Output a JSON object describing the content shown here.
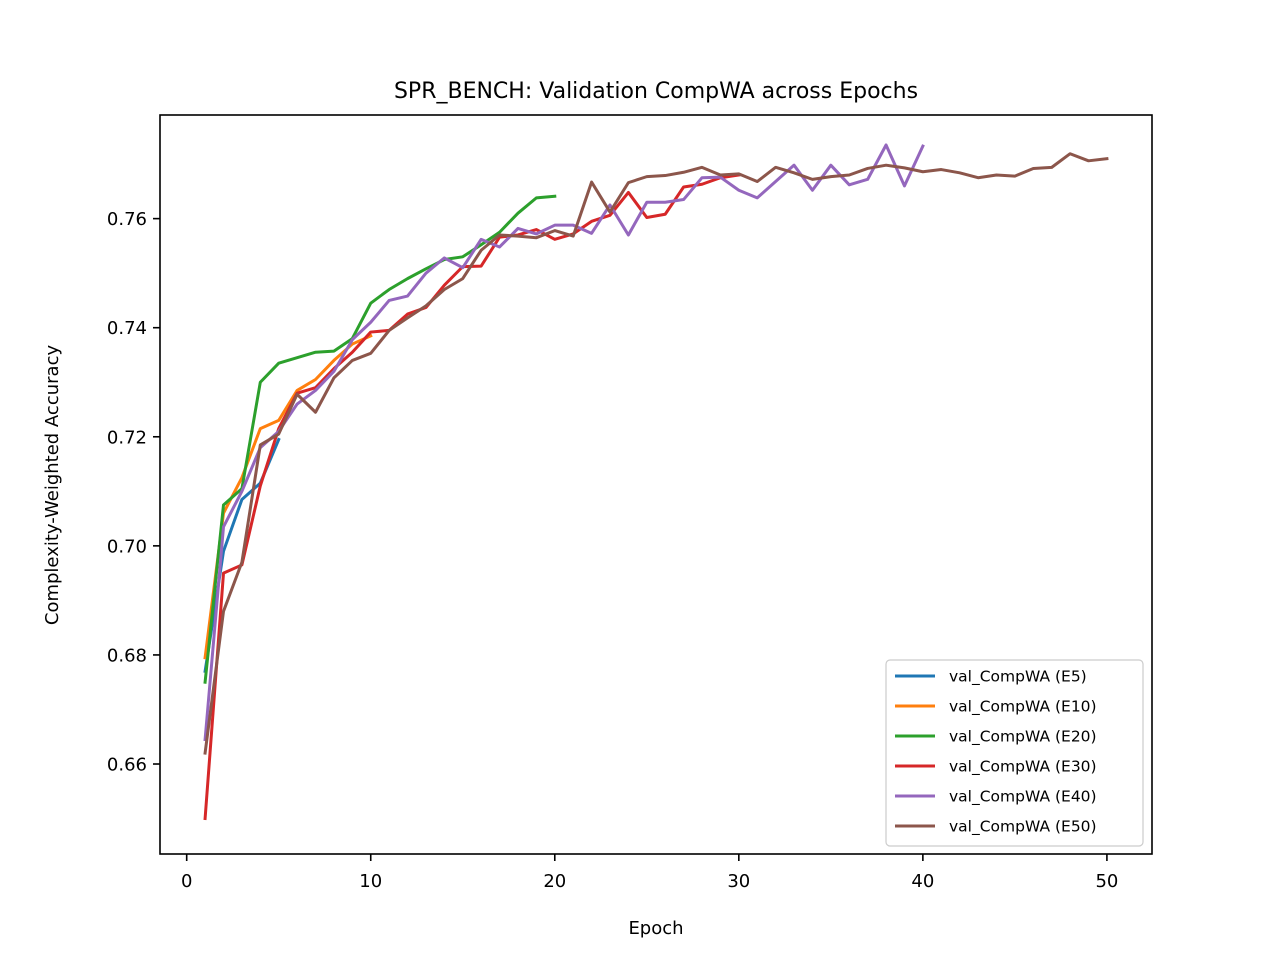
{
  "chart_data": {
    "type": "line",
    "title": "SPR_BENCH: Validation CompWA across Epochs",
    "xlabel": "Epoch",
    "ylabel": "Complexity-Weighted Accuracy",
    "xlim": [
      -1.45,
      52.45
    ],
    "ylim": [
      0.6435,
      0.779
    ],
    "xticks": [
      0,
      10,
      20,
      30,
      40,
      50
    ],
    "yticks": [
      0.66,
      0.68,
      0.7,
      0.72,
      0.74,
      0.76
    ],
    "ytick_labels": [
      "0.66",
      "0.68",
      "0.70",
      "0.72",
      "0.74",
      "0.76"
    ],
    "legend_position": "lower-right",
    "series": [
      {
        "name": "val_CompWA (E5)",
        "color": "#1f77b4",
        "values": [
          0.677,
          0.699,
          0.7085,
          0.7115,
          0.7195
        ]
      },
      {
        "name": "val_CompWA (E10)",
        "color": "#ff7f0e",
        "values": [
          0.6795,
          0.706,
          0.7125,
          0.7215,
          0.723,
          0.7285,
          0.7305,
          0.734,
          0.737,
          0.7385
        ]
      },
      {
        "name": "val_CompWA (E20)",
        "color": "#2ca02c",
        "values": [
          0.675,
          0.7075,
          0.7105,
          0.73,
          0.7335,
          0.7345,
          0.7355,
          0.7357,
          0.738,
          0.7445,
          0.747,
          0.749,
          0.7508,
          0.7525,
          0.753,
          0.7552,
          0.7575,
          0.761,
          0.7638,
          0.7641
        ]
      },
      {
        "name": "val_CompWA (E30)",
        "color": "#d62728",
        "values": [
          0.65,
          0.695,
          0.6965,
          0.711,
          0.7215,
          0.728,
          0.729,
          0.7325,
          0.7355,
          0.7392,
          0.7395,
          0.7425,
          0.7437,
          0.7478,
          0.7512,
          0.7513,
          0.7566,
          0.757,
          0.758,
          0.7562,
          0.7572,
          0.7595,
          0.7606,
          0.7648,
          0.7602,
          0.7608,
          0.7658,
          0.7663,
          0.7675,
          0.768
        ]
      },
      {
        "name": "val_CompWA (E40)",
        "color": "#9467bd",
        "values": [
          0.6645,
          0.7035,
          0.71,
          0.718,
          0.721,
          0.726,
          0.7285,
          0.732,
          0.7378,
          0.741,
          0.745,
          0.7458,
          0.75,
          0.7528,
          0.751,
          0.7562,
          0.7548,
          0.7582,
          0.7572,
          0.7588,
          0.7588,
          0.7573,
          0.7625,
          0.757,
          0.763,
          0.763,
          0.7635,
          0.7675,
          0.7676,
          0.7652,
          0.7638,
          0.7668,
          0.7698,
          0.7652,
          0.7698,
          0.7662,
          0.7672,
          0.7735,
          0.766,
          0.7733
        ]
      },
      {
        "name": "val_CompWA (E50)",
        "color": "#8c564b",
        "values": [
          0.662,
          0.688,
          0.697,
          0.7185,
          0.7205,
          0.7278,
          0.7245,
          0.7308,
          0.734,
          0.7353,
          0.7395,
          0.7418,
          0.744,
          0.747,
          0.749,
          0.7542,
          0.757,
          0.7568,
          0.7565,
          0.7578,
          0.7568,
          0.7667,
          0.7612,
          0.7666,
          0.7677,
          0.7679,
          0.7685,
          0.7694,
          0.768,
          0.7682,
          0.7668,
          0.7694,
          0.7684,
          0.7672,
          0.7677,
          0.768,
          0.7692,
          0.7698,
          0.7693,
          0.7686,
          0.769,
          0.7684,
          0.7675,
          0.768,
          0.7678,
          0.7692,
          0.7694,
          0.7719,
          0.7706,
          0.771
        ]
      }
    ]
  }
}
